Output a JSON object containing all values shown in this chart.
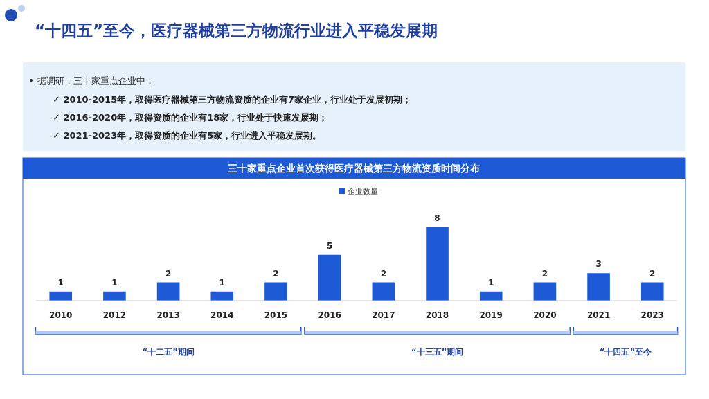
{
  "chart_data": {
    "type": "bar",
    "title": "三十家重点企业首次获得医疗器械第三方物流资质时间分布",
    "annotations": [
      "“十四五”至今，医疗器械第三方物流行业进入平稳发展期",
      "据调研，三十家重点企业中：",
      "✓ 2010-2015年，取得医疗器械第三方物流资质的企业有7家企业，行业处于发展初期；",
      "✓ 2016-2020年，取得资质的企业有18家，行业处于快速发展期；",
      "✓ 2021-2023年，取得资质的企业有5家，行业进入平稳发展期。",
      "“十二五”期间",
      "“十三五”期间",
      "“十四五”至今"
    ],
    "categories": [
      "2010",
      "2012",
      "2013",
      "2014",
      "2015",
      "2016",
      "2017",
      "2018",
      "2019",
      "2020",
      "2021",
      "2023"
    ],
    "series": [
      {
        "name": "企业数量",
        "color": "#1f5ad6",
        "values": [
          1,
          1,
          2,
          1,
          2,
          5,
          2,
          8,
          1,
          2,
          3,
          2
        ]
      }
    ],
    "relative": false,
    "data_labels": true,
    "legend": "top",
    "grid": false
  }
}
